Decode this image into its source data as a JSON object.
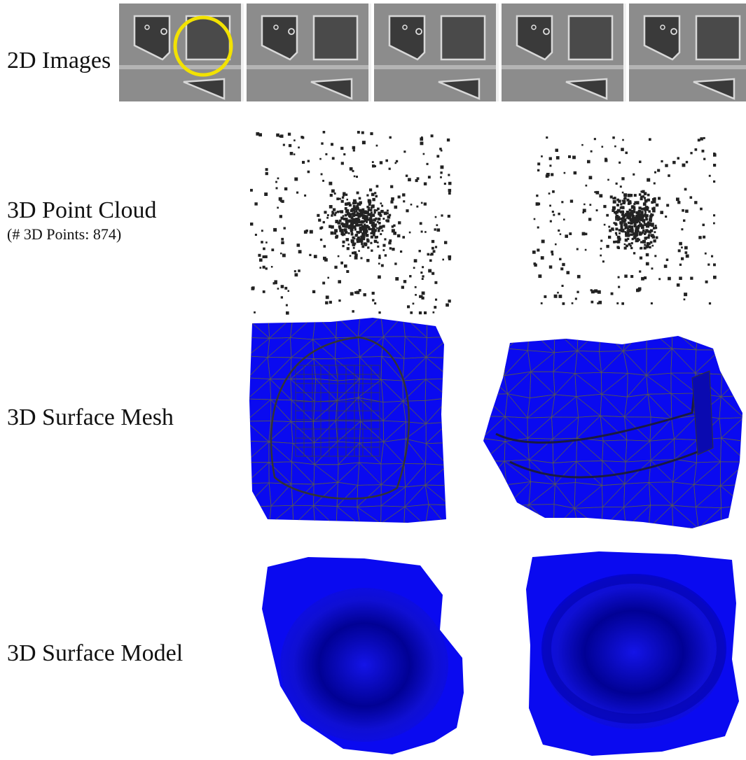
{
  "rows": {
    "images": {
      "label": "2D Images"
    },
    "cloud": {
      "label": "3D Point Cloud",
      "sublabel": "(# 3D Points: 874)"
    },
    "mesh": {
      "label": "3D Surface Mesh"
    },
    "model": {
      "label": "3D Surface Model"
    }
  },
  "colors": {
    "surface": "#0a0af0",
    "surface_dark": "#00008a",
    "mesh_line": "#555555",
    "highlight_circle": "#f2e200",
    "sem_gray": "#8c8c8c",
    "points": "#222222"
  },
  "icons": {
    "highlight": "yellow-circle-highlight"
  }
}
